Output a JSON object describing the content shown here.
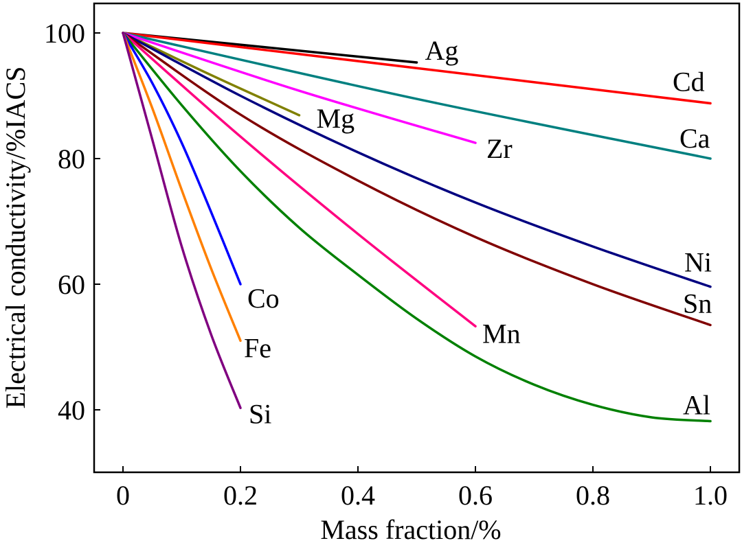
{
  "chart_data": {
    "type": "line",
    "title": "",
    "xlabel": "Mass fraction/%",
    "ylabel": "Electrical conductivity/%IACS",
    "xlim": [
      -0.05,
      1.05
    ],
    "ylim": [
      30,
      104.7
    ],
    "xticks": [
      0,
      0.2,
      0.4,
      0.6,
      0.8,
      1.0
    ],
    "xtick_labels": [
      "0",
      "0.2",
      "0.4",
      "0.6",
      "0.8",
      "1.0"
    ],
    "yticks": [
      40,
      60,
      80,
      100
    ],
    "ytick_labels": [
      "40",
      "60",
      "80",
      "100"
    ],
    "grid": false,
    "legend": "inline labels at line ends",
    "series": [
      {
        "name": "Ag",
        "color": "#000000",
        "x": [
          0,
          0.5
        ],
        "y": [
          100,
          95.3
        ]
      },
      {
        "name": "Cd",
        "color": "#ff0000",
        "x": [
          0,
          0.5,
          1.0
        ],
        "y": [
          100,
          94.4,
          88.8
        ]
      },
      {
        "name": "Ca",
        "color": "#008080",
        "x": [
          0,
          0.5,
          1.0
        ],
        "y": [
          100,
          89.5,
          80
        ]
      },
      {
        "name": "Mg",
        "color": "#808000",
        "x": [
          0,
          0.15,
          0.3
        ],
        "y": [
          100,
          93.3,
          86.9
        ]
      },
      {
        "name": "Zr",
        "color": "#ff00ff",
        "x": [
          0,
          0.3,
          0.6
        ],
        "y": [
          100,
          90.8,
          82.5
        ]
      },
      {
        "name": "Ni",
        "color": "#000080",
        "x": [
          0,
          0.2,
          0.4,
          0.6,
          0.8,
          1.0
        ],
        "y": [
          100,
          90,
          81,
          73,
          66,
          59.6
        ]
      },
      {
        "name": "Sn",
        "color": "#800000",
        "x": [
          0,
          0.2,
          0.4,
          0.6,
          0.8,
          1.0
        ],
        "y": [
          100,
          87,
          76.5,
          67.5,
          60,
          53.5
        ]
      },
      {
        "name": "Mn",
        "color": "#ff0080",
        "x": [
          0,
          0.2,
          0.4,
          0.6
        ],
        "y": [
          100,
          83.5,
          68,
          53.3
        ]
      },
      {
        "name": "Al",
        "color": "#008000",
        "x": [
          0,
          0.1,
          0.2,
          0.3,
          0.4,
          0.5,
          0.6,
          0.7,
          0.8,
          0.9,
          1.0
        ],
        "y": [
          100,
          88.5,
          78,
          69,
          61.5,
          54.5,
          48.5,
          44,
          40.8,
          38.8,
          38.2
        ]
      },
      {
        "name": "Co",
        "color": "#0000ff",
        "x": [
          0,
          0.05,
          0.1,
          0.15,
          0.2
        ],
        "y": [
          100,
          92,
          82.5,
          71.5,
          60
        ]
      },
      {
        "name": "Fe",
        "color": "#ff8000",
        "x": [
          0,
          0.05,
          0.1,
          0.15,
          0.2
        ],
        "y": [
          100,
          88,
          75,
          62.5,
          51
        ]
      },
      {
        "name": "Si",
        "color": "#800080",
        "x": [
          0,
          0.05,
          0.1,
          0.15,
          0.2
        ],
        "y": [
          100,
          83,
          66,
          52,
          40.3
        ]
      }
    ]
  }
}
